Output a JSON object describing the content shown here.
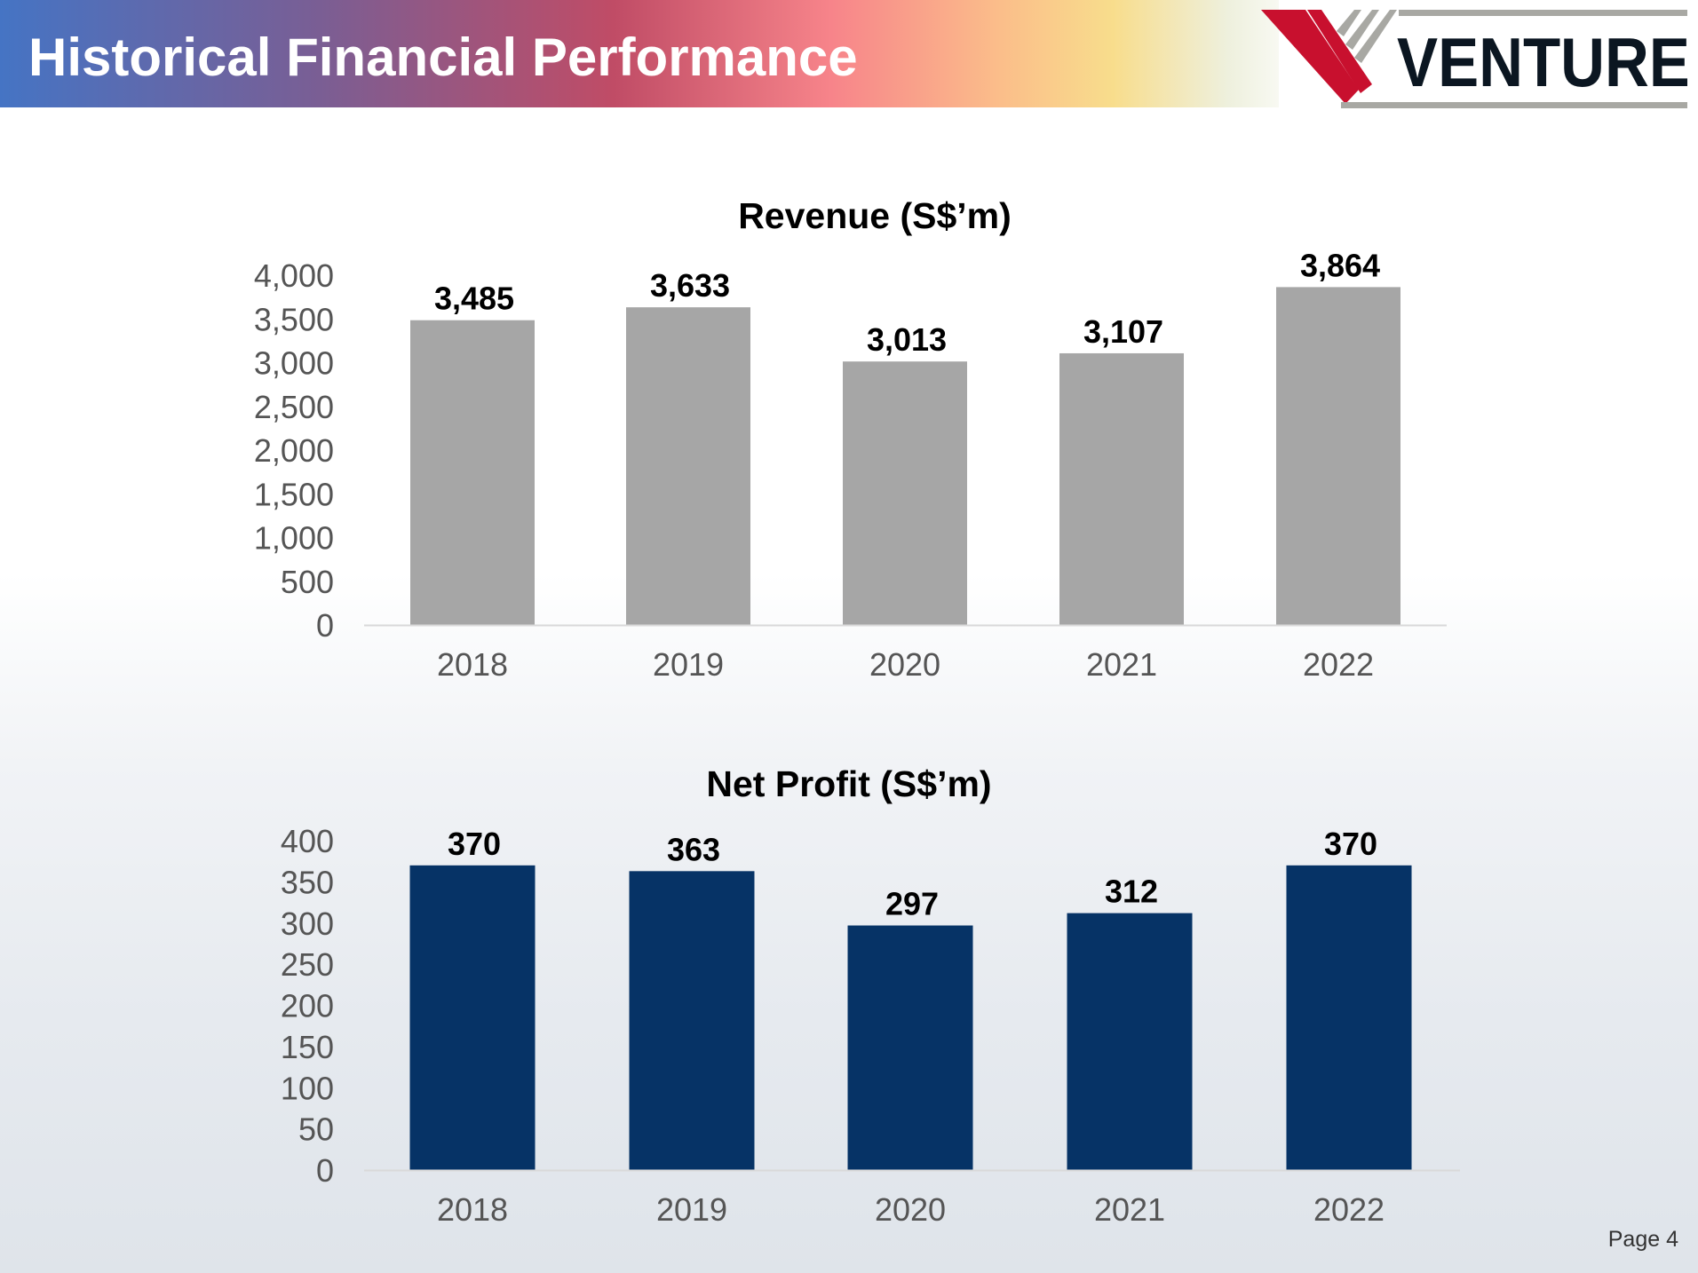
{
  "header": {
    "title": "Historical Financial Performance"
  },
  "logo": {
    "text": "VENTURE",
    "colors": {
      "red": "#c8102e",
      "grey": "#a8a8a3",
      "dark": "#0b1621"
    }
  },
  "footer": {
    "page": "Page 4"
  },
  "chart_data": [
    {
      "type": "bar",
      "title": "Revenue (S$’m)",
      "categories": [
        "2018",
        "2019",
        "2020",
        "2021",
        "2022"
      ],
      "values": [
        3485,
        3633,
        3013,
        3107,
        3864
      ],
      "data_labels": [
        "3,485",
        "3,633",
        "3,013",
        "3,107",
        "3,864"
      ],
      "yticks": [
        "0",
        "500",
        "1,000",
        "1,500",
        "2,000",
        "2,500",
        "3,000",
        "3,500",
        "4,000"
      ],
      "ylim": [
        0,
        4000
      ],
      "color": "#a6a6a6",
      "grid": false
    },
    {
      "type": "bar",
      "title": "Net Profit (S$’m)",
      "categories": [
        "2018",
        "2019",
        "2020",
        "2021",
        "2022"
      ],
      "values": [
        370,
        363,
        297,
        312,
        370
      ],
      "data_labels": [
        "370",
        "363",
        "297",
        "312",
        "370"
      ],
      "yticks": [
        "0",
        "50",
        "100",
        "150",
        "200",
        "250",
        "300",
        "350",
        "400"
      ],
      "ylim": [
        0,
        400
      ],
      "color": "#063366",
      "grid": false
    }
  ]
}
